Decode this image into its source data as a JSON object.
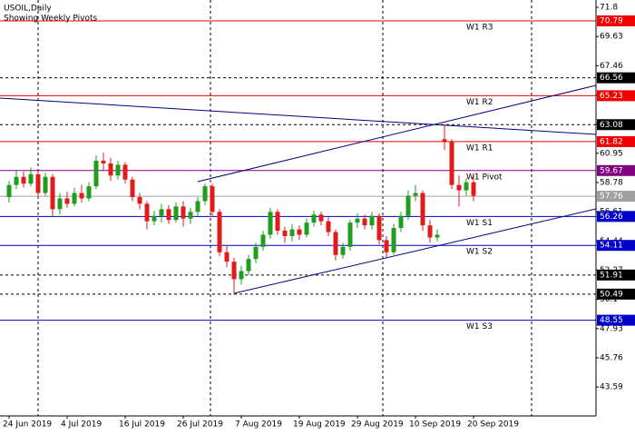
{
  "chart_data": {
    "type": "candlestick",
    "title": "USOIL,Daily",
    "subtitle": "Showing Weekly Pivots",
    "categories": [
      "24 Jun 2019",
      null,
      null,
      null,
      null,
      null,
      null,
      null,
      "4 Jul 2019",
      null,
      null,
      null,
      null,
      null,
      null,
      null,
      "16 Jul 2019",
      null,
      null,
      null,
      null,
      null,
      null,
      null,
      "26 Jul 2019",
      null,
      null,
      null,
      null,
      null,
      null,
      null,
      "7 Aug 2019",
      null,
      null,
      null,
      null,
      null,
      null,
      null,
      "19 Aug 2019",
      null,
      null,
      null,
      null,
      null,
      null,
      null,
      "29 Aug 2019",
      null,
      null,
      null,
      null,
      null,
      null,
      null,
      "10 Sep 2019",
      null,
      null,
      null,
      null,
      null,
      null,
      null,
      "20 Sep 2019"
    ],
    "open": [
      57.7,
      58.6,
      59.2,
      58.7,
      59.4,
      58.0,
      59.2,
      56.8,
      57.6,
      57.2,
      58.0,
      57.6,
      58.5,
      60.4,
      60.2,
      59.3,
      60.1,
      59.0,
      57.7,
      57.2,
      55.9,
      56.3,
      56.8,
      56.0,
      57.0,
      56.1,
      56.6,
      57.4,
      58.5,
      56.6,
      53.6,
      52.9,
      51.6,
      52.2,
      53.1,
      54.0,
      54.9,
      56.6,
      55.2,
      54.8,
      55.3,
      54.9,
      55.8,
      56.4,
      55.9,
      55.1,
      53.4,
      54.0,
      55.8,
      56.1,
      55.6,
      56.3,
      54.5,
      53.6,
      55.4,
      56.3,
      57.8,
      58.0,
      55.6,
      54.7,
      62.0,
      61.8,
      58.6,
      58.2,
      58.8
    ],
    "high": [
      58.9,
      59.7,
      59.6,
      59.9,
      59.6,
      59.5,
      59.4,
      58.0,
      58.1,
      58.4,
      58.6,
      58.8,
      60.8,
      61.0,
      60.6,
      60.4,
      60.3,
      59.2,
      58.0,
      57.4,
      56.7,
      57.2,
      57.1,
      57.3,
      57.4,
      56.9,
      57.7,
      58.7,
      58.7,
      56.8,
      54.1,
      53.2,
      52.6,
      53.4,
      54.3,
      55.2,
      56.9,
      56.8,
      55.5,
      55.7,
      55.6,
      56.1,
      56.7,
      56.6,
      56.2,
      55.3,
      54.3,
      56.0,
      56.5,
      56.4,
      56.6,
      56.5,
      54.8,
      55.7,
      56.6,
      58.2,
      58.6,
      58.2,
      56.0,
      55.3,
      63.1,
      62.0,
      59.3,
      59.1,
      59.4
    ],
    "low": [
      57.3,
      58.3,
      58.4,
      58.5,
      57.7,
      57.8,
      56.3,
      56.4,
      56.9,
      57.0,
      57.3,
      57.4,
      58.3,
      59.7,
      58.9,
      59.0,
      58.7,
      57.4,
      56.8,
      55.3,
      55.6,
      55.8,
      55.7,
      55.8,
      55.5,
      55.7,
      56.3,
      57.1,
      56.2,
      53.3,
      52.5,
      50.5,
      51.2,
      51.9,
      52.8,
      53.7,
      54.6,
      54.9,
      54.3,
      54.4,
      54.5,
      54.7,
      55.5,
      55.6,
      54.8,
      53.0,
      53.1,
      53.7,
      55.4,
      55.3,
      55.3,
      54.2,
      53.2,
      53.4,
      55.1,
      56.0,
      57.4,
      55.2,
      54.3,
      54.4,
      61.2,
      58.3,
      57.0,
      57.8,
      57.4
    ],
    "close": [
      58.6,
      59.2,
      58.7,
      59.4,
      58.0,
      59.2,
      56.8,
      57.6,
      57.2,
      58.0,
      57.6,
      58.5,
      60.4,
      60.2,
      59.3,
      60.1,
      59.0,
      57.7,
      57.2,
      55.9,
      56.3,
      56.8,
      56.0,
      57.0,
      56.1,
      56.6,
      57.4,
      58.5,
      56.6,
      53.6,
      52.9,
      51.6,
      52.2,
      53.1,
      54.0,
      54.9,
      56.6,
      55.2,
      54.8,
      55.3,
      54.9,
      55.8,
      56.4,
      55.9,
      55.1,
      53.4,
      54.0,
      55.8,
      56.1,
      55.6,
      56.3,
      54.5,
      53.6,
      55.4,
      56.3,
      57.8,
      58.0,
      55.6,
      54.7,
      54.9,
      61.8,
      58.6,
      58.2,
      58.8,
      57.8
    ],
    "up_color": "#1f9d1f",
    "down_color": "#e31a1a",
    "ylim": [
      41.44,
      72.34
    ],
    "yticks": [
      71.8,
      69.63,
      67.46,
      65.29,
      63.12,
      60.95,
      58.78,
      56.61,
      54.44,
      52.27,
      50.1,
      47.93,
      45.76,
      43.59
    ],
    "levels": [
      {
        "label": "W1 R3",
        "value": 70.79,
        "color": "#f00000",
        "style": "solid"
      },
      {
        "value": 66.56,
        "color": "#000000",
        "style": "dashed"
      },
      {
        "label": "W1 R2",
        "value": 65.23,
        "color": "#f00000",
        "style": "solid"
      },
      {
        "value": 63.08,
        "color": "#000000",
        "style": "dashed"
      },
      {
        "label": "W1 R1",
        "value": 61.82,
        "color": "#f00000",
        "style": "solid"
      },
      {
        "label": "W1 Pivot",
        "value": 59.67,
        "color": "#800080",
        "style": "solid"
      },
      {
        "value": 57.76,
        "color": "#a0a0a0",
        "style": "solid"
      },
      {
        "label": "W1 S1",
        "value": 56.26,
        "color": "#0000c8",
        "style": "solid"
      },
      {
        "label": "W1 S2",
        "value": 54.11,
        "color": "#0000c8",
        "style": "solid"
      },
      {
        "value": 51.91,
        "color": "#000000",
        "style": "dashed"
      },
      {
        "value": 50.49,
        "color": "#000000",
        "style": "dashed"
      },
      {
        "label": "W1 S3",
        "value": 48.55,
        "color": "#0000c8",
        "style": "solid"
      }
    ]
  }
}
